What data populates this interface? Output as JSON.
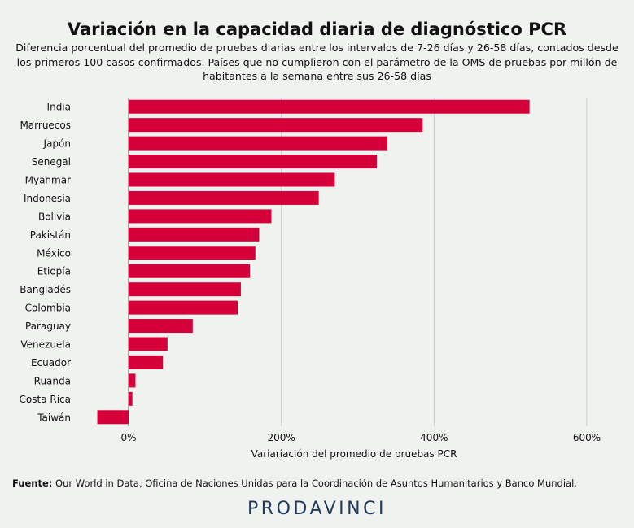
{
  "header": {
    "title": "Variación en la capacidad diaria de diagnóstico PCR",
    "subtitle": "Diferencia porcentual del promedio de pruebas diarias entre los intervalos de 7-26 días y 26-58 días, contados desde los primeros 100 casos confirmados. Países que no cumplieron con el parámetro de la OMS de pruebas por millón de habitantes a la semana entre sus 26-58 días"
  },
  "chart_data": {
    "type": "bar",
    "orientation": "horizontal",
    "categories": [
      "India",
      "Marruecos",
      "Japón",
      "Senegal",
      "Myanmar",
      "Indonesia",
      "Bolivia",
      "Pakistán",
      "México",
      "Etiopía",
      "Bangladés",
      "Colombia",
      "Paraguay",
      "Venezuela",
      "Ecuador",
      "Ruanda",
      "Costa Rica",
      "Taiwán"
    ],
    "values": [
      525,
      385,
      339,
      325,
      270,
      249,
      187,
      171,
      166,
      159,
      147,
      143,
      84,
      51,
      45,
      9,
      5,
      -41
    ],
    "xlabel": "Variariación del promedio de pruebas PCR",
    "xlim": [
      -45,
      610
    ],
    "xticks": [
      0,
      200,
      400,
      600
    ],
    "xtick_labels": [
      "0%",
      "200%",
      "400%",
      "600%"
    ],
    "grid": "vertical",
    "bar_color": "#d5003a",
    "grid_color": "#c8c8c8"
  },
  "footer": {
    "source_label": "Fuente:",
    "source_text": " Our World in Data, Oficina de Naciones Unidas para la Coordinación de Asuntos Humanitarios y Banco Mundial.",
    "brand": "PRODAVINCI"
  }
}
